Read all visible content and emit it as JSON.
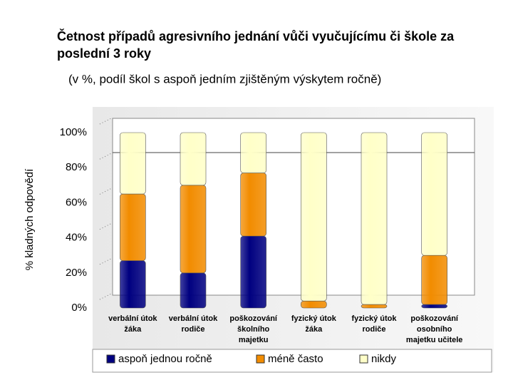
{
  "chart_data": {
    "type": "stacked_bar",
    "title": [
      "Četnost případů agresivního jednání vůči vyučujícímu či škole za",
      "poslední 3 roky"
    ],
    "subtitle": "(v %, podíl škol s aspoň jedním zjištěným výskytem ročně)",
    "y_label": "% kladných odpovědí",
    "categories": [
      [
        "verbální útok",
        "žáka"
      ],
      [
        "verbální útok",
        "rodiče"
      ],
      [
        "poškozování",
        "školního",
        "majetku"
      ],
      [
        "fyzický útok",
        "žáka"
      ],
      [
        "fyzický útok",
        "rodiče"
      ],
      [
        "poškozování",
        "osobního",
        "majetku učitele"
      ]
    ],
    "series": [
      {
        "name": "aspoň jednou ročně",
        "color": "#000080",
        "values": [
          27,
          20,
          41,
          0,
          0,
          2
        ]
      },
      {
        "name": "méně často",
        "color": "#f28c00",
        "values": [
          38,
          50,
          36,
          4,
          2,
          28
        ]
      },
      {
        "name": "nikdy",
        "color": "#ffffc8",
        "values": [
          35,
          30,
          23,
          96,
          98,
          70
        ]
      }
    ],
    "ylim": [
      0,
      100
    ],
    "yticks": [
      {
        "value": 0,
        "label": "0%"
      },
      {
        "value": 20,
        "label": "20%"
      },
      {
        "value": 40,
        "label": "40%"
      },
      {
        "value": 60,
        "label": "60%"
      },
      {
        "value": 80,
        "label": "80%"
      },
      {
        "value": 100,
        "label": "100%"
      }
    ],
    "legend": "bottom"
  }
}
